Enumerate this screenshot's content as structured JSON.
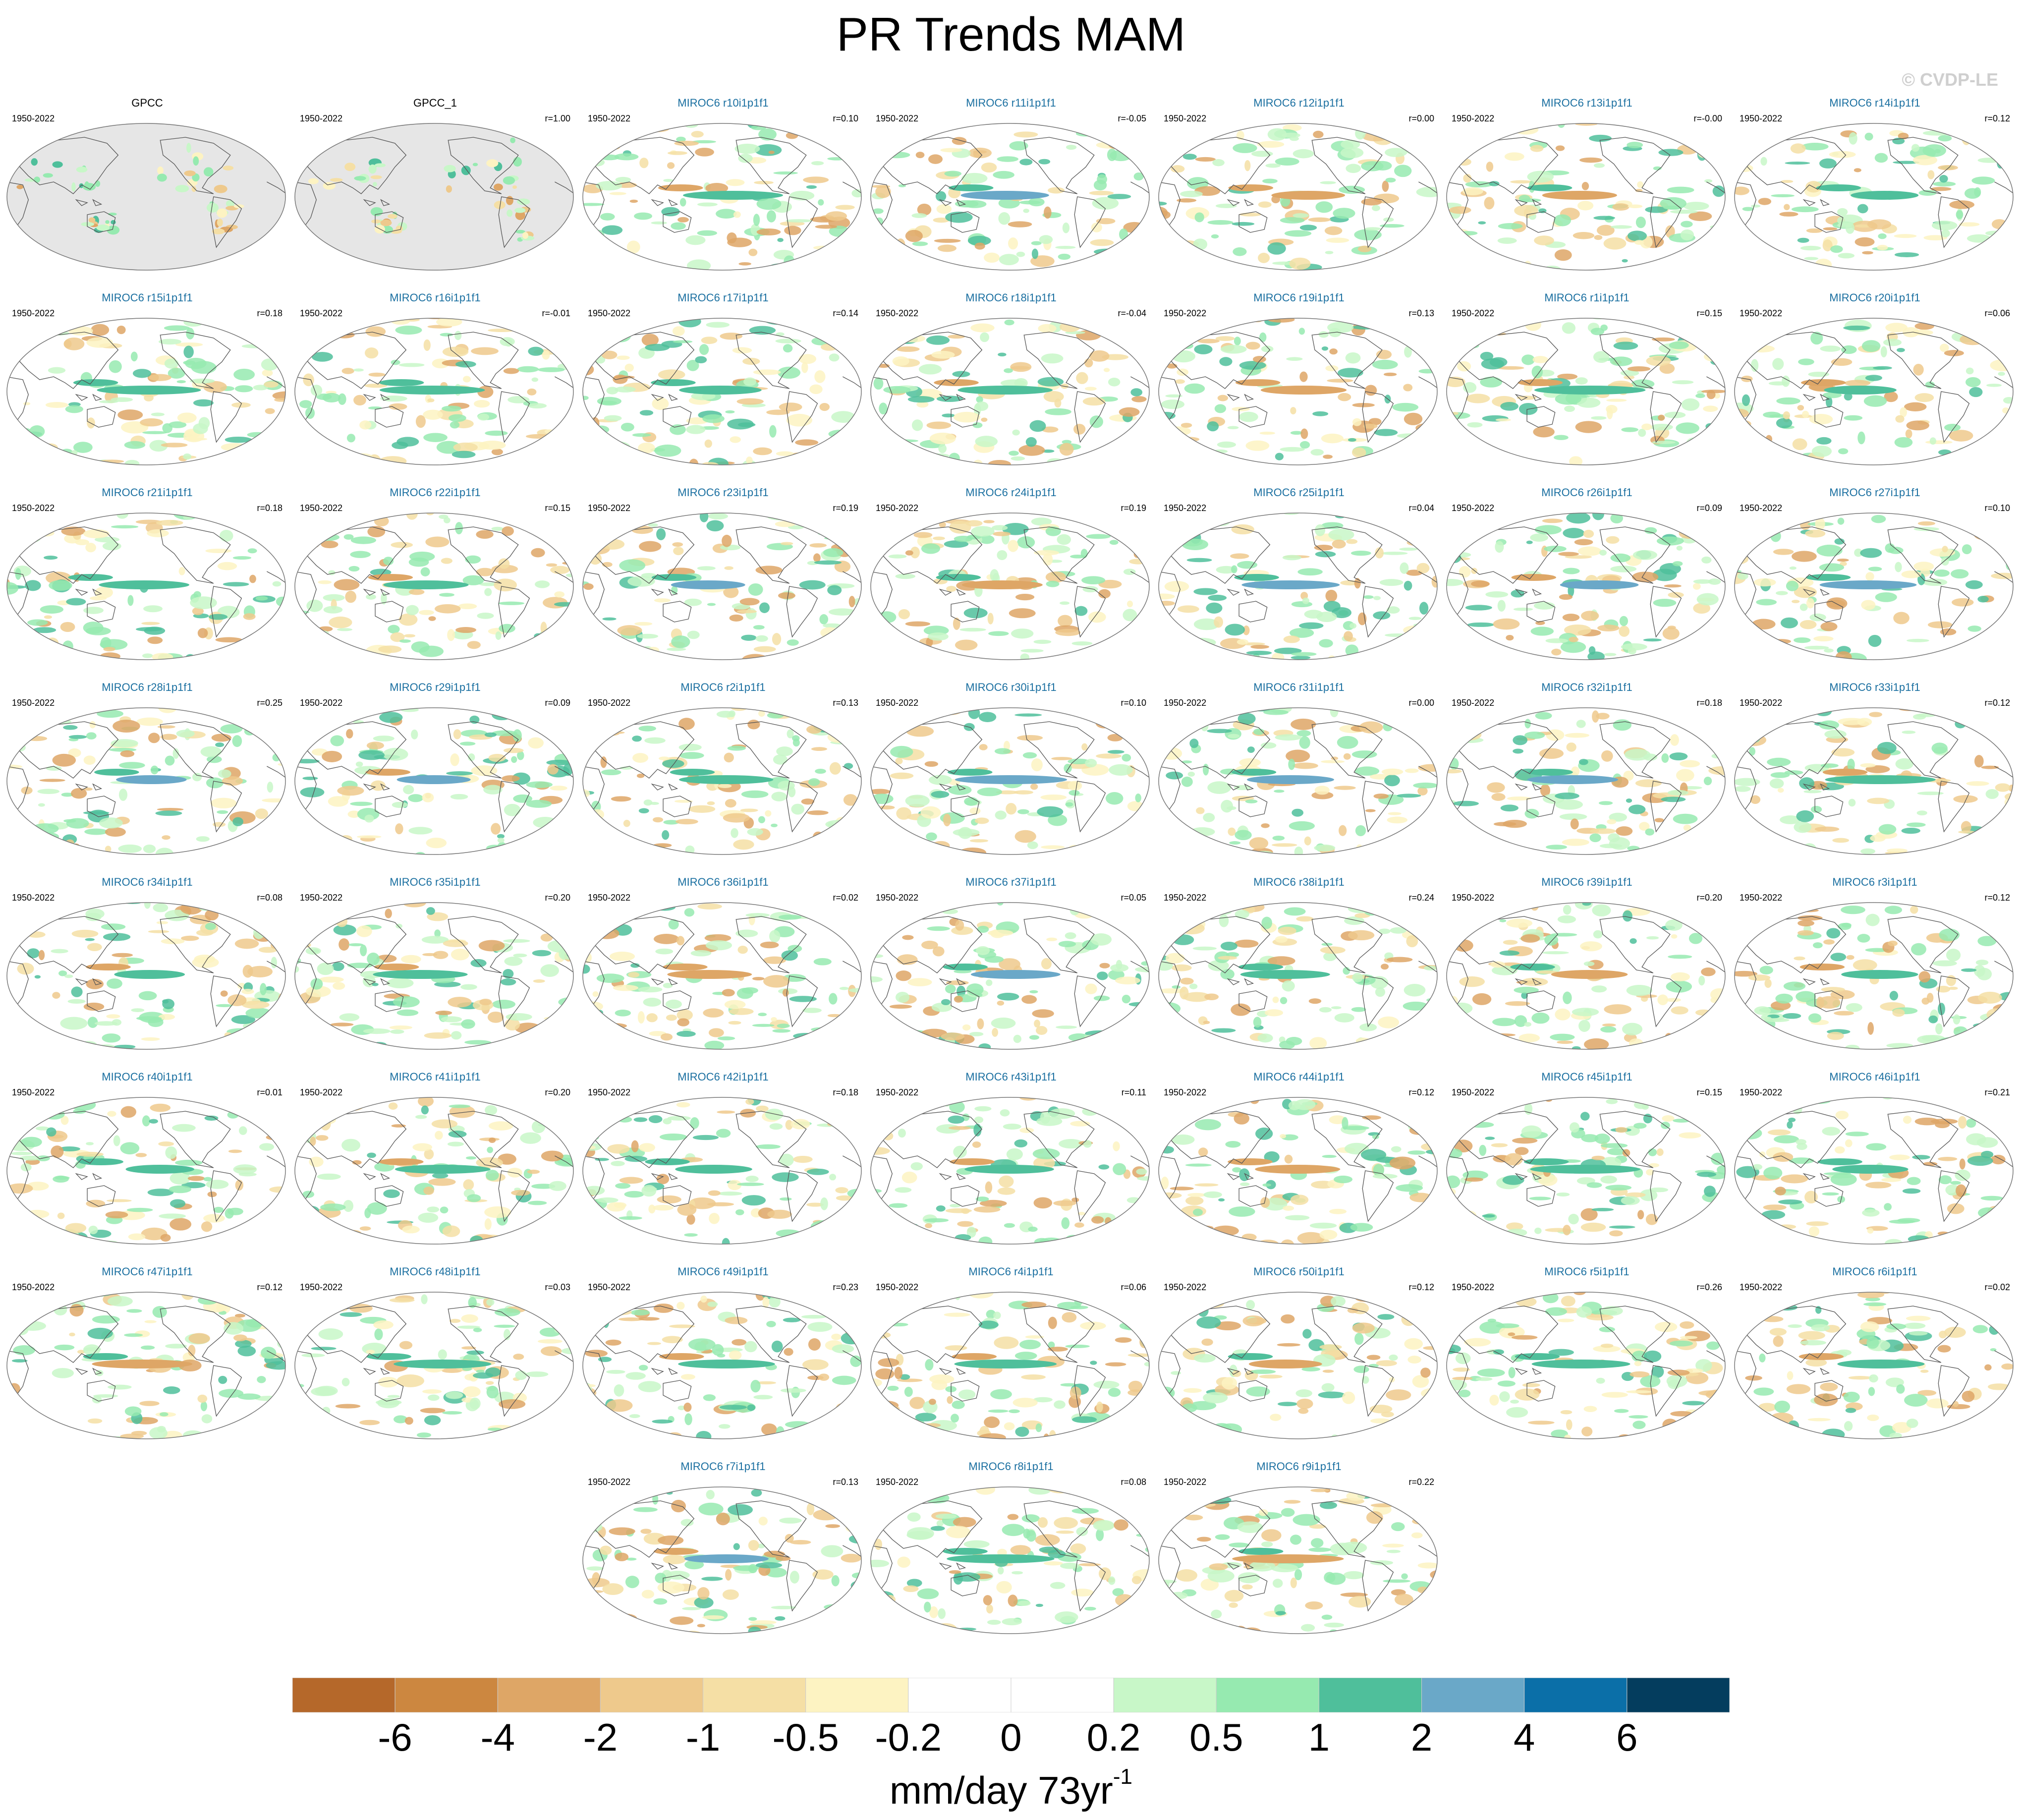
{
  "title": "PR Trends MAM",
  "watermark": "© CVDP-LE",
  "period": "1950-2022",
  "panels": [
    {
      "name": "GPCC",
      "r": "",
      "obs": true
    },
    {
      "name": "GPCC_1",
      "r": "r=1.00",
      "obs": true
    },
    {
      "name": "MIROC6 r10i1p1f1",
      "r": "r=0.10"
    },
    {
      "name": "MIROC6 r11i1p1f1",
      "r": "r=-0.05"
    },
    {
      "name": "MIROC6 r12i1p1f1",
      "r": "r=0.00"
    },
    {
      "name": "MIROC6 r13i1p1f1",
      "r": "r=-0.00"
    },
    {
      "name": "MIROC6 r14i1p1f1",
      "r": "r=0.12"
    },
    {
      "name": "MIROC6 r15i1p1f1",
      "r": "r=0.18"
    },
    {
      "name": "MIROC6 r16i1p1f1",
      "r": "r=-0.01"
    },
    {
      "name": "MIROC6 r17i1p1f1",
      "r": "r=0.14"
    },
    {
      "name": "MIROC6 r18i1p1f1",
      "r": "r=-0.04"
    },
    {
      "name": "MIROC6 r19i1p1f1",
      "r": "r=0.13"
    },
    {
      "name": "MIROC6 r1i1p1f1",
      "r": "r=0.15"
    },
    {
      "name": "MIROC6 r20i1p1f1",
      "r": "r=0.06"
    },
    {
      "name": "MIROC6 r21i1p1f1",
      "r": "r=0.18"
    },
    {
      "name": "MIROC6 r22i1p1f1",
      "r": "r=0.15"
    },
    {
      "name": "MIROC6 r23i1p1f1",
      "r": "r=0.19"
    },
    {
      "name": "MIROC6 r24i1p1f1",
      "r": "r=0.19"
    },
    {
      "name": "MIROC6 r25i1p1f1",
      "r": "r=0.04"
    },
    {
      "name": "MIROC6 r26i1p1f1",
      "r": "r=0.09"
    },
    {
      "name": "MIROC6 r27i1p1f1",
      "r": "r=0.10"
    },
    {
      "name": "MIROC6 r28i1p1f1",
      "r": "r=0.25"
    },
    {
      "name": "MIROC6 r29i1p1f1",
      "r": "r=0.09"
    },
    {
      "name": "MIROC6 r2i1p1f1",
      "r": "r=0.13"
    },
    {
      "name": "MIROC6 r30i1p1f1",
      "r": "r=0.10"
    },
    {
      "name": "MIROC6 r31i1p1f1",
      "r": "r=0.00"
    },
    {
      "name": "MIROC6 r32i1p1f1",
      "r": "r=0.18"
    },
    {
      "name": "MIROC6 r33i1p1f1",
      "r": "r=0.12"
    },
    {
      "name": "MIROC6 r34i1p1f1",
      "r": "r=0.08"
    },
    {
      "name": "MIROC6 r35i1p1f1",
      "r": "r=0.20"
    },
    {
      "name": "MIROC6 r36i1p1f1",
      "r": "r=0.02"
    },
    {
      "name": "MIROC6 r37i1p1f1",
      "r": "r=0.05"
    },
    {
      "name": "MIROC6 r38i1p1f1",
      "r": "r=0.24"
    },
    {
      "name": "MIROC6 r39i1p1f1",
      "r": "r=0.20"
    },
    {
      "name": "MIROC6 r3i1p1f1",
      "r": "r=0.12"
    },
    {
      "name": "MIROC6 r40i1p1f1",
      "r": "r=0.01"
    },
    {
      "name": "MIROC6 r41i1p1f1",
      "r": "r=0.20"
    },
    {
      "name": "MIROC6 r42i1p1f1",
      "r": "r=0.18"
    },
    {
      "name": "MIROC6 r43i1p1f1",
      "r": "r=0.11"
    },
    {
      "name": "MIROC6 r44i1p1f1",
      "r": "r=0.12"
    },
    {
      "name": "MIROC6 r45i1p1f1",
      "r": "r=0.15"
    },
    {
      "name": "MIROC6 r46i1p1f1",
      "r": "r=0.21"
    },
    {
      "name": "MIROC6 r47i1p1f1",
      "r": "r=0.12"
    },
    {
      "name": "MIROC6 r48i1p1f1",
      "r": "r=0.03"
    },
    {
      "name": "MIROC6 r49i1p1f1",
      "r": "r=0.23"
    },
    {
      "name": "MIROC6 r4i1p1f1",
      "r": "r=0.06"
    },
    {
      "name": "MIROC6 r50i1p1f1",
      "r": "r=0.12"
    },
    {
      "name": "MIROC6 r5i1p1f1",
      "r": "r=0.26"
    },
    {
      "name": "MIROC6 r6i1p1f1",
      "r": "r=0.02"
    },
    {
      "name": "MIROC6 r7i1p1f1",
      "r": "r=0.13"
    },
    {
      "name": "MIROC6 r8i1p1f1",
      "r": "r=0.08"
    },
    {
      "name": "MIROC6 r9i1p1f1",
      "r": "r=0.22"
    }
  ],
  "colorbar": {
    "colors": [
      "#b5682a",
      "#cc8740",
      "#dea666",
      "#eec98c",
      "#f5dfa5",
      "#fdf3c2",
      "#ffffff",
      "#ffffff",
      "#c8f7c8",
      "#96eab0",
      "#4fbf9b",
      "#6aa8c8",
      "#0b6fa8",
      "#043d5e"
    ],
    "tick_labels": [
      "-6",
      "-4",
      "-2",
      "-1",
      "-0.5",
      "-0.2",
      "0",
      "0.2",
      "0.5",
      "1",
      "2",
      "4",
      "6"
    ],
    "units": "mm/day 73yr",
    "units_exponent": "-1"
  },
  "colors": {
    "land_mask_obs": "#e6e6e6",
    "model_label": "#1a6fa0",
    "coastline": "#555555"
  }
}
